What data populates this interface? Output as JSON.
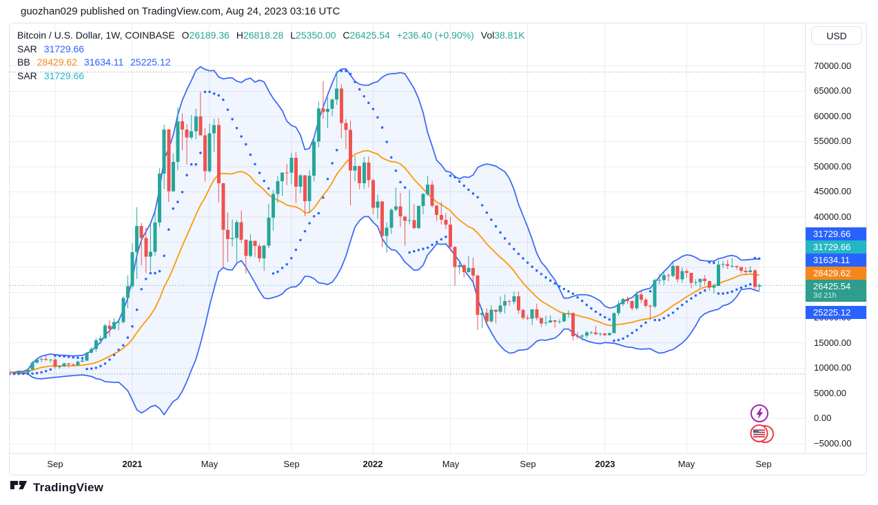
{
  "page": {
    "publisher_line": "guozhan029 published on TradingView.com, Aug 24, 2023 03:16 UTC",
    "brand": "TradingView"
  },
  "toolbar": {
    "currency_button": "USD"
  },
  "legend": {
    "symbol_title": "Bitcoin / U.S. Dollar, 1W, COINBASE",
    "o_label": "O",
    "o": "26189.36",
    "h_label": "H",
    "h": "26818.28",
    "l_label": "L",
    "l": "25350.00",
    "c_label": "C",
    "c": "26425.54",
    "change": "+236.40 (+0.90%)",
    "vol_label": "Vol",
    "vol": "38.81K",
    "sar1_label": "SAR",
    "sar1_value": "31729.66",
    "bb_label": "BB",
    "bb_basis": "28429.62",
    "bb_upper": "31634.11",
    "bb_lower": "25225.12",
    "sar2_label": "SAR",
    "sar2_value": "31729.66"
  },
  "price_axis": {
    "tick_values": [
      70000,
      65000,
      60000,
      55000,
      50000,
      45000,
      40000,
      35000,
      30000,
      25000,
      20000,
      15000,
      10000,
      5000,
      0,
      -5000
    ],
    "labels": [
      {
        "text": "31729.66",
        "bg": "#2962FF"
      },
      {
        "text": "31729.66",
        "bg": "#24B6C5"
      },
      {
        "text": "31634.11",
        "bg": "#2962FF"
      },
      {
        "text": "28429.62",
        "bg": "#F7861B"
      },
      {
        "text": "26425.54",
        "sub": "3d 21h",
        "bg": "#2E9D8D"
      },
      {
        "text": "25225.12",
        "bg": "#2962FF"
      }
    ]
  },
  "time_axis": {
    "ticks": [
      {
        "i": 10,
        "label": "Sep",
        "bold": false
      },
      {
        "i": 27,
        "label": "2021",
        "bold": true
      },
      {
        "i": 44,
        "label": "May",
        "bold": false
      },
      {
        "i": 62,
        "label": "Sep",
        "bold": false
      },
      {
        "i": 80,
        "label": "2022",
        "bold": true
      },
      {
        "i": 97,
        "label": "May",
        "bold": false
      },
      {
        "i": 114,
        "label": "Sep",
        "bold": false
      },
      {
        "i": 131,
        "label": "2023",
        "bold": true
      },
      {
        "i": 149,
        "label": "May",
        "bold": false
      },
      {
        "i": 166,
        "label": "Sep",
        "bold": false
      }
    ]
  },
  "events": [
    {
      "name": "lightning-event",
      "color": "#9C27B0"
    },
    {
      "name": "us-economic-event",
      "color": "#F23645"
    }
  ],
  "colors": {
    "up": "#26A69A",
    "down": "#EF5350",
    "bb_band": "#3D6BF5",
    "bb_basis": "#FF9800",
    "bb_fill": "rgba(61,107,245,0.07)",
    "sar1": "#2962FF",
    "sar2": "#24B6C5",
    "price_line": "#26A69A",
    "grid": "#E9ECF2",
    "dotted_level": "#787B86",
    "axis_text": "#131722"
  },
  "chart_data": {
    "type": "candlestick",
    "title": "Bitcoin / U.S. Dollar, 1W, COINBASE",
    "interval": "1W",
    "x_start": "2020-06-22",
    "x_step_days": 7,
    "y_axis": {
      "tick_min": -5000,
      "tick_max": 70000,
      "tick_step": 5000,
      "visible_min": -7000,
      "visible_max": 78400
    },
    "price_line": 26425.54,
    "dotted_levels": {
      "high": 68789,
      "low": 8850
    },
    "indicators": {
      "bollinger": {
        "period": 20,
        "stddev": 2,
        "basis": 28429.62,
        "upper": 31634.11,
        "lower": 25225.12
      },
      "sar": [
        {
          "name": "SAR",
          "value": 31729.66,
          "color": "#2962FF"
        },
        {
          "name": "SAR",
          "value": 31729.66,
          "color": "#24B6C5"
        }
      ]
    },
    "last_candle": {
      "o": 26189.36,
      "h": 26818.28,
      "l": 25350.0,
      "c": 26425.54,
      "change": 236.4,
      "change_pct": 0.9,
      "volume": "38.81K"
    },
    "candles": [
      [
        9320,
        9780,
        8850,
        9160
      ],
      [
        9160,
        9290,
        8930,
        9070
      ],
      [
        9070,
        9470,
        9060,
        9300
      ],
      [
        9300,
        9340,
        9050,
        9160
      ],
      [
        9160,
        9700,
        9080,
        9700
      ],
      [
        9700,
        11420,
        9650,
        11050
      ],
      [
        11050,
        11900,
        10960,
        11680
      ],
      [
        11680,
        12070,
        11125,
        11850
      ],
      [
        11850,
        12480,
        11450,
        11650
      ],
      [
        11650,
        11840,
        11110,
        11700
      ],
      [
        11700,
        12070,
        9870,
        10250
      ],
      [
        10250,
        10590,
        9820,
        10330
      ],
      [
        10330,
        11090,
        10230,
        10920
      ],
      [
        10920,
        10980,
        10136,
        10720
      ],
      [
        10720,
        10960,
        10370,
        10550
      ],
      [
        10550,
        11490,
        10490,
        11290
      ],
      [
        11290,
        11730,
        11150,
        11500
      ],
      [
        11500,
        13220,
        11400,
        13050
      ],
      [
        13050,
        14080,
        12880,
        13800
      ],
      [
        13800,
        15960,
        13260,
        15480
      ],
      [
        15480,
        16480,
        14810,
        15950
      ],
      [
        15950,
        18800,
        15760,
        18420
      ],
      [
        18420,
        19450,
        16240,
        17740
      ],
      [
        17740,
        19900,
        17600,
        19150
      ],
      [
        19150,
        19420,
        17570,
        19150
      ],
      [
        19150,
        24210,
        18850,
        23900
      ],
      [
        23900,
        28420,
        21900,
        26250
      ],
      [
        26250,
        34800,
        25830,
        33000
      ],
      [
        33000,
        41950,
        27700,
        38200
      ],
      [
        38200,
        38850,
        30400,
        35850
      ],
      [
        35850,
        37850,
        28850,
        32100
      ],
      [
        32100,
        38700,
        29250,
        33100
      ],
      [
        33100,
        40950,
        32300,
        38900
      ],
      [
        38900,
        49700,
        38000,
        48600
      ],
      [
        48600,
        58350,
        45570,
        57400
      ],
      [
        57400,
        57500,
        43000,
        45150
      ],
      [
        45150,
        52650,
        44950,
        50950
      ],
      [
        50950,
        61800,
        49270,
        59000
      ],
      [
        59000,
        60600,
        53250,
        57400
      ],
      [
        57400,
        58400,
        50450,
        55800
      ],
      [
        55800,
        60250,
        55450,
        57050
      ],
      [
        57050,
        61500,
        55400,
        60000
      ],
      [
        60000,
        64850,
        59600,
        56200
      ],
      [
        56200,
        57600,
        47040,
        49100
      ],
      [
        49100,
        58500,
        48800,
        56600
      ],
      [
        56600,
        59500,
        52900,
        58250
      ],
      [
        58250,
        59600,
        42900,
        46700
      ],
      [
        46700,
        46800,
        30000,
        37450
      ],
      [
        37450,
        40900,
        31100,
        35650
      ],
      [
        35650,
        39500,
        34150,
        35800
      ],
      [
        35800,
        39380,
        31000,
        39000
      ],
      [
        39000,
        41330,
        34800,
        35500
      ],
      [
        35500,
        35600,
        28800,
        32300
      ],
      [
        32300,
        36600,
        32000,
        35300
      ],
      [
        35300,
        35300,
        32100,
        34250
      ],
      [
        34250,
        34680,
        31000,
        31800
      ],
      [
        31800,
        34500,
        29300,
        34300
      ],
      [
        34300,
        42600,
        33850,
        39850
      ],
      [
        39850,
        45350,
        37300,
        44600
      ],
      [
        44600,
        48150,
        42800,
        47100
      ],
      [
        47100,
        48050,
        44200,
        48850
      ],
      [
        48850,
        50500,
        46350,
        48800
      ],
      [
        48800,
        52750,
        46500,
        51750
      ],
      [
        51750,
        52900,
        42800,
        46000
      ],
      [
        46000,
        48500,
        44700,
        48300
      ],
      [
        48300,
        48340,
        40150,
        43150
      ],
      [
        43150,
        49250,
        40750,
        48200
      ],
      [
        48200,
        56100,
        47100,
        54950
      ],
      [
        54950,
        62900,
        53850,
        61550
      ],
      [
        61550,
        67000,
        59500,
        60850
      ],
      [
        60850,
        63720,
        57650,
        61500
      ],
      [
        61500,
        63560,
        60050,
        63300
      ],
      [
        63300,
        69000,
        62280,
        65500
      ],
      [
        65500,
        66350,
        55650,
        58650
      ],
      [
        58650,
        59450,
        53500,
        57300
      ],
      [
        57300,
        59100,
        42330,
        49250
      ],
      [
        49250,
        52100,
        47100,
        50100
      ],
      [
        50100,
        50200,
        45560,
        46700
      ],
      [
        46700,
        51940,
        45550,
        50800
      ],
      [
        50800,
        52000,
        45900,
        47300
      ],
      [
        47300,
        47580,
        40550,
        41850
      ],
      [
        41850,
        44450,
        39650,
        43100
      ],
      [
        43100,
        43190,
        34000,
        36250
      ],
      [
        36250,
        38960,
        32950,
        37900
      ],
      [
        37900,
        41750,
        36650,
        41450
      ],
      [
        41450,
        45850,
        41120,
        42100
      ],
      [
        42100,
        44790,
        38050,
        40100
      ],
      [
        40100,
        40300,
        34300,
        39250
      ],
      [
        39250,
        45400,
        38550,
        39400
      ],
      [
        39400,
        42550,
        37550,
        37800
      ],
      [
        37800,
        42330,
        37600,
        42200
      ],
      [
        42200,
        44750,
        40550,
        44550
      ],
      [
        44550,
        48200,
        44200,
        46450
      ],
      [
        46450,
        47200,
        41900,
        42250
      ],
      [
        42250,
        42420,
        39200,
        40400
      ],
      [
        40400,
        42970,
        38540,
        39450
      ],
      [
        39450,
        40800,
        37580,
        38470
      ],
      [
        38470,
        40020,
        33300,
        34050
      ],
      [
        34050,
        34220,
        26350,
        30100
      ],
      [
        30100,
        31070,
        28650,
        30450
      ],
      [
        30450,
        30650,
        28000,
        29050
      ],
      [
        29050,
        32200,
        29000,
        29850
      ],
      [
        29850,
        31950,
        26850,
        28400
      ],
      [
        28400,
        28550,
        17600,
        20550
      ],
      [
        20550,
        21870,
        17950,
        21000
      ],
      [
        21000,
        21850,
        18600,
        19250
      ],
      [
        19250,
        22450,
        19050,
        21600
      ],
      [
        21600,
        21600,
        18900,
        21200
      ],
      [
        21200,
        24280,
        20750,
        22450
      ],
      [
        22450,
        24670,
        20850,
        23300
      ],
      [
        23300,
        23500,
        22400,
        23175
      ],
      [
        23175,
        25210,
        22660,
        24300
      ],
      [
        24300,
        25200,
        20800,
        21500
      ],
      [
        21500,
        21800,
        19550,
        19950
      ],
      [
        19950,
        20550,
        19520,
        19830
      ],
      [
        19830,
        21650,
        18540,
        21700
      ],
      [
        21700,
        22800,
        19500,
        19950
      ],
      [
        19950,
        19950,
        18150,
        18900
      ],
      [
        18900,
        20380,
        18450,
        19050
      ],
      [
        19050,
        20480,
        18950,
        19450
      ],
      [
        19450,
        19560,
        18050,
        19200
      ],
      [
        19200,
        19700,
        18830,
        19250
      ],
      [
        19250,
        21080,
        19150,
        20800
      ],
      [
        20800,
        21480,
        20000,
        20950
      ],
      [
        20950,
        21050,
        15480,
        16350
      ],
      [
        16350,
        17150,
        15750,
        16250
      ],
      [
        16250,
        16750,
        15450,
        16450
      ],
      [
        16450,
        17400,
        16000,
        17100
      ],
      [
        17100,
        17360,
        16700,
        17100
      ],
      [
        17100,
        18390,
        16530,
        16750
      ],
      [
        16750,
        16950,
        16330,
        16850
      ],
      [
        16850,
        16970,
        16350,
        16550
      ],
      [
        16550,
        17040,
        16490,
        16950
      ],
      [
        16950,
        21050,
        16940,
        20900
      ],
      [
        20900,
        23370,
        20400,
        22700
      ],
      [
        22700,
        23960,
        22300,
        23750
      ],
      [
        23750,
        24250,
        22760,
        23330
      ],
      [
        23330,
        23450,
        21450,
        21860
      ],
      [
        21860,
        25250,
        21540,
        24630
      ],
      [
        24630,
        25210,
        22860,
        23560
      ],
      [
        23560,
        23920,
        21990,
        22350
      ],
      [
        22350,
        22650,
        19550,
        22220
      ],
      [
        22220,
        27770,
        21900,
        27450
      ],
      [
        27450,
        28750,
        26600,
        27500
      ],
      [
        27500,
        29150,
        26500,
        28450
      ],
      [
        28450,
        28800,
        27250,
        28330
      ],
      [
        28330,
        31000,
        28050,
        30300
      ],
      [
        30300,
        30450,
        26950,
        27600
      ],
      [
        27600,
        29950,
        26900,
        29250
      ],
      [
        29250,
        29680,
        27900,
        28900
      ],
      [
        28900,
        28950,
        25850,
        26950
      ],
      [
        26950,
        27650,
        26400,
        27100
      ],
      [
        27100,
        27230,
        25870,
        27750
      ],
      [
        27750,
        28460,
        26550,
        27250
      ],
      [
        27250,
        27400,
        25350,
        25950
      ],
      [
        25950,
        26770,
        24800,
        26350
      ],
      [
        26350,
        31410,
        26250,
        30550
      ],
      [
        30550,
        31270,
        29850,
        30600
      ],
      [
        30600,
        31500,
        29700,
        30300
      ],
      [
        30300,
        31850,
        29950,
        30300
      ],
      [
        30300,
        30350,
        29550,
        30100
      ],
      [
        30100,
        30100,
        28850,
        29350
      ],
      [
        29350,
        30050,
        28550,
        29050
      ],
      [
        29050,
        30200,
        28950,
        29400
      ],
      [
        29400,
        29650,
        25350,
        26100
      ],
      [
        26189.36,
        26818.28,
        25350,
        26425.54
      ]
    ]
  }
}
